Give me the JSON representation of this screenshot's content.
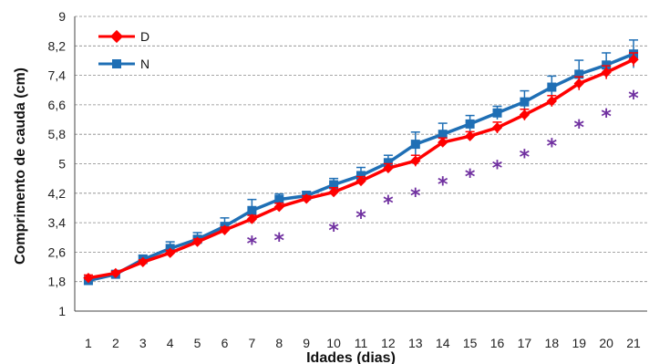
{
  "chart_data": {
    "type": "line",
    "title": "",
    "xlabel": "Idades (dias)",
    "ylabel": "Comprimento de cauda (cm)",
    "x": [
      1,
      2,
      3,
      4,
      5,
      6,
      7,
      8,
      9,
      10,
      11,
      12,
      13,
      14,
      15,
      16,
      17,
      18,
      19,
      20,
      21
    ],
    "xticks": [
      "1",
      "2",
      "3",
      "4",
      "5",
      "6",
      "7",
      "8",
      "9",
      "10",
      "11",
      "12",
      "13",
      "14",
      "15",
      "16",
      "17",
      "18",
      "19",
      "20",
      "21"
    ],
    "ylim": [
      1,
      9
    ],
    "yticks": [
      "1",
      "1,8",
      "2,6",
      "3,4",
      "4,2",
      "5",
      "5,8",
      "6,6",
      "7,4",
      "8,2",
      "9"
    ],
    "ytick_values": [
      1,
      1.8,
      2.6,
      3.4,
      4.2,
      5,
      5.8,
      6.6,
      7.4,
      8.2,
      9
    ],
    "grid": true,
    "legend_position": "top-left",
    "series": [
      {
        "name": "D",
        "color": "#ff0000",
        "marker": "diamond",
        "values": [
          1.9,
          2.03,
          2.33,
          2.58,
          2.88,
          3.2,
          3.5,
          3.83,
          4.05,
          4.23,
          4.53,
          4.88,
          5.08,
          5.58,
          5.75,
          5.98,
          6.33,
          6.7,
          7.18,
          7.48,
          7.83
        ],
        "errors": [
          0.08,
          0.05,
          0.06,
          0.07,
          0.08,
          0.08,
          0.1,
          0.1,
          0.08,
          0.12,
          0.12,
          0.12,
          0.15,
          0.12,
          0.12,
          0.15,
          0.15,
          0.15,
          0.18,
          0.18,
          0.18
        ]
      },
      {
        "name": "N",
        "color": "#1f6fb5",
        "marker": "square",
        "values": [
          1.83,
          2.0,
          2.4,
          2.7,
          2.95,
          3.3,
          3.73,
          4.03,
          4.13,
          4.43,
          4.68,
          5.03,
          5.53,
          5.8,
          6.08,
          6.38,
          6.68,
          7.08,
          7.43,
          7.68,
          7.98
        ],
        "errors": [
          0.06,
          0.08,
          0.12,
          0.18,
          0.18,
          0.23,
          0.3,
          0.15,
          0.12,
          0.17,
          0.22,
          0.2,
          0.33,
          0.3,
          0.23,
          0.18,
          0.3,
          0.3,
          0.38,
          0.33,
          0.38
        ]
      }
    ],
    "significance": {
      "symbol": "*",
      "color": "#7030a0",
      "x": [
        7,
        8,
        10,
        11,
        12,
        13,
        14,
        15,
        16,
        17,
        18,
        19,
        20,
        21
      ],
      "y": [
        2.95,
        3.03,
        3.3,
        3.65,
        4.05,
        4.25,
        4.55,
        4.77,
        5.0,
        5.3,
        5.6,
        6.1,
        6.4,
        6.9
      ]
    }
  }
}
